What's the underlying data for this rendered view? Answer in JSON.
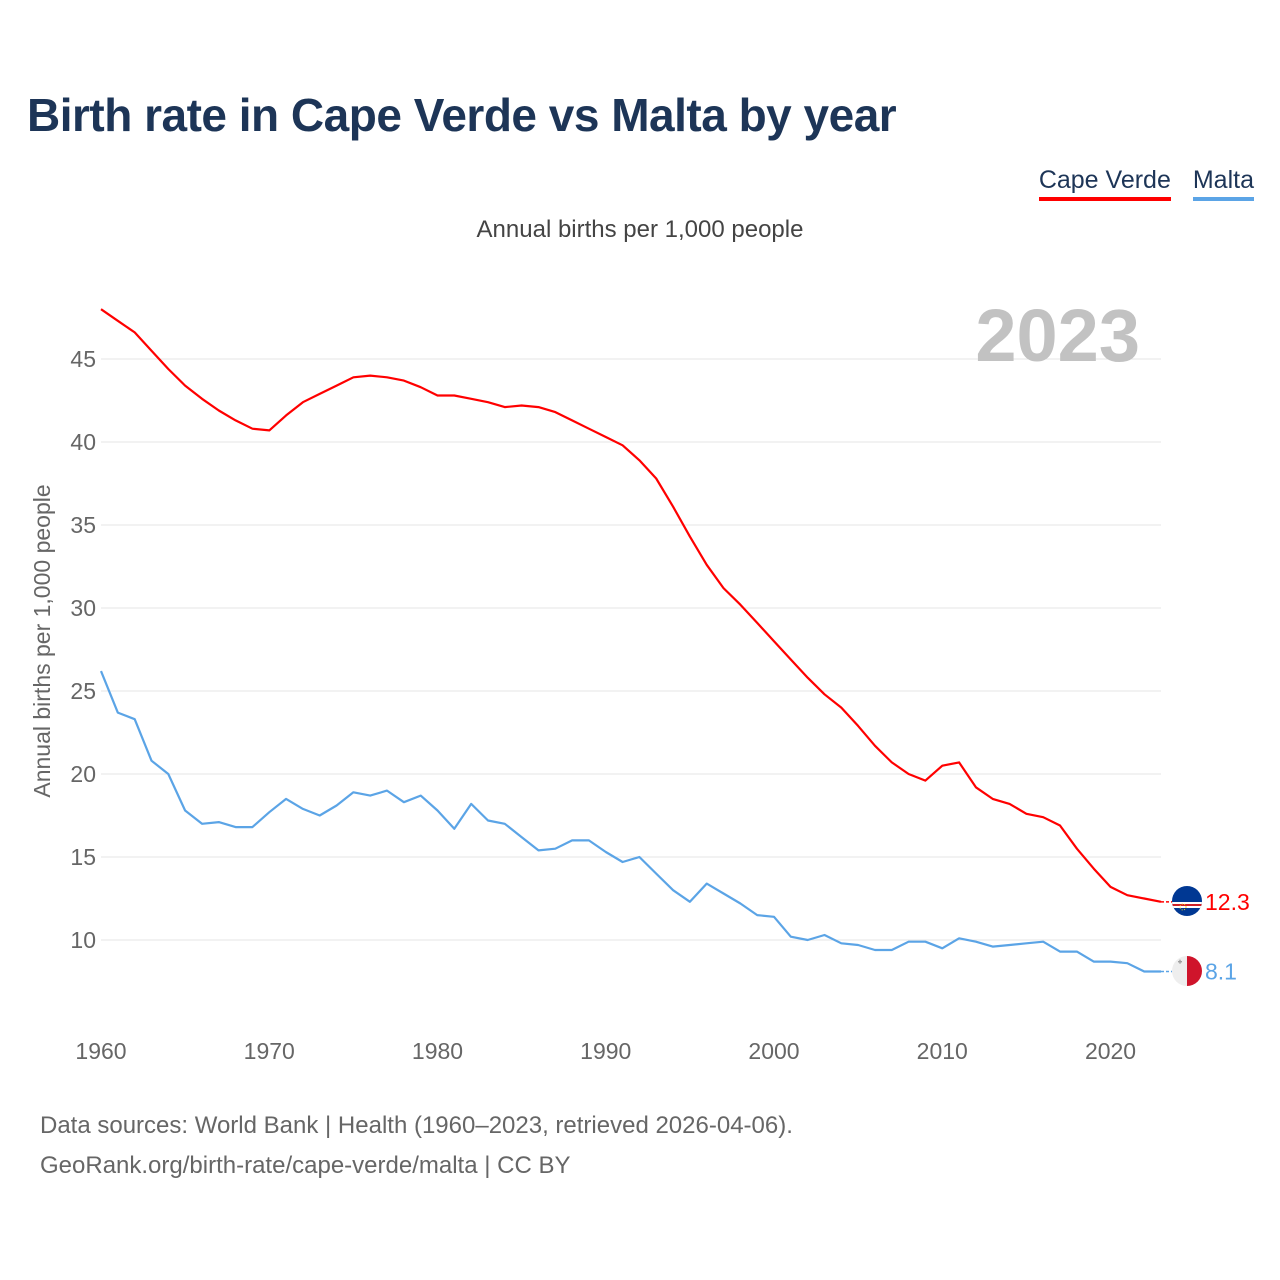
{
  "title": "Birth rate in Cape Verde vs Malta by year",
  "subtitle": "Annual births per 1,000 people",
  "legend": [
    {
      "label": "Cape Verde",
      "color": "#ff0000"
    },
    {
      "label": "Malta",
      "color": "#5ba4e6"
    }
  ],
  "footer": {
    "line1": "Data sources: World Bank | Health (1960–2023, retrieved 2026-04-06).",
    "line2": "GeoRank.org/birth-rate/cape-verde/malta | CC BY"
  },
  "chart_data": {
    "type": "line",
    "title": "Birth rate in Cape Verde vs Malta by year",
    "subtitle": "Annual births per 1,000 people",
    "xlabel": "",
    "ylabel": "Annual births per 1,000 people",
    "year_label": "2023",
    "xlim": [
      1960,
      2023
    ],
    "ylim": [
      7,
      48
    ],
    "x_ticks": [
      1960,
      1970,
      1980,
      1990,
      2000,
      2010,
      2020
    ],
    "y_ticks": [
      10,
      15,
      20,
      25,
      30,
      35,
      40,
      45
    ],
    "grid": true,
    "legend_position": "top-right",
    "x": [
      1960,
      1961,
      1962,
      1963,
      1964,
      1965,
      1966,
      1967,
      1968,
      1969,
      1970,
      1971,
      1972,
      1973,
      1974,
      1975,
      1976,
      1977,
      1978,
      1979,
      1980,
      1981,
      1982,
      1983,
      1984,
      1985,
      1986,
      1987,
      1988,
      1989,
      1990,
      1991,
      1992,
      1993,
      1994,
      1995,
      1996,
      1997,
      1998,
      1999,
      2000,
      2001,
      2002,
      2003,
      2004,
      2005,
      2006,
      2007,
      2008,
      2009,
      2010,
      2011,
      2012,
      2013,
      2014,
      2015,
      2016,
      2017,
      2018,
      2019,
      2020,
      2021,
      2022,
      2023
    ],
    "series": [
      {
        "name": "Cape Verde",
        "color": "#ff0000",
        "end_label": "12.3",
        "values": [
          48.0,
          47.3,
          46.6,
          45.5,
          44.4,
          43.4,
          42.6,
          41.9,
          41.3,
          40.8,
          40.7,
          41.6,
          42.4,
          42.9,
          43.4,
          43.9,
          44.0,
          43.9,
          43.7,
          43.3,
          42.8,
          42.8,
          42.6,
          42.4,
          42.1,
          42.2,
          42.1,
          41.8,
          41.3,
          40.8,
          40.3,
          39.8,
          38.9,
          37.8,
          36.1,
          34.3,
          32.6,
          31.2,
          30.2,
          29.1,
          28.0,
          26.9,
          25.8,
          24.8,
          24.0,
          22.9,
          21.7,
          20.7,
          20.0,
          19.6,
          20.5,
          20.7,
          19.2,
          18.5,
          18.2,
          17.6,
          17.4,
          16.9,
          15.5,
          14.3,
          13.2,
          12.7,
          12.5,
          12.3
        ]
      },
      {
        "name": "Malta",
        "color": "#5ba4e6",
        "end_label": "8.1",
        "values": [
          26.2,
          23.7,
          23.3,
          20.8,
          20.0,
          17.8,
          17.0,
          17.1,
          16.8,
          16.8,
          17.7,
          18.5,
          17.9,
          17.5,
          18.1,
          18.9,
          18.7,
          19.0,
          18.3,
          18.7,
          17.8,
          16.7,
          18.2,
          17.2,
          17.0,
          16.2,
          15.4,
          15.5,
          16.0,
          16.0,
          15.3,
          14.7,
          15.0,
          14.0,
          13.0,
          12.3,
          13.4,
          12.8,
          12.2,
          11.5,
          11.4,
          10.2,
          10.0,
          10.3,
          9.8,
          9.7,
          9.4,
          9.4,
          9.9,
          9.9,
          9.5,
          10.1,
          9.9,
          9.6,
          9.7,
          9.8,
          9.9,
          9.3,
          9.3,
          8.7,
          8.7,
          8.6,
          8.1,
          8.1
        ]
      }
    ]
  }
}
